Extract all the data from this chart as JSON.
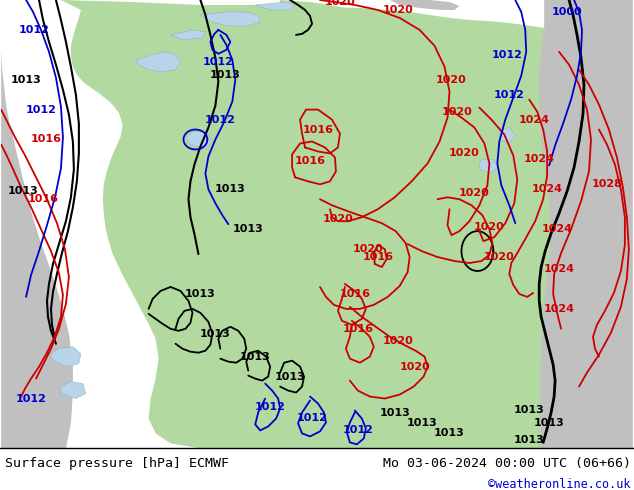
{
  "title_left": "Surface pressure [hPa] ECMWF",
  "title_right": "Mo 03-06-2024 00:00 UTC (06+66)",
  "copyright": "©weatheronline.co.uk",
  "land_green": "#b2d9a0",
  "land_gray": "#c0c0c0",
  "sea_blue": "#b8d4e8",
  "bg_white": "#e8e8e8",
  "black": "#000000",
  "red": "#cc0000",
  "blue": "#0000cc",
  "label_fs": 8,
  "footer_fs": 9.5,
  "copy_fs": 8.5
}
